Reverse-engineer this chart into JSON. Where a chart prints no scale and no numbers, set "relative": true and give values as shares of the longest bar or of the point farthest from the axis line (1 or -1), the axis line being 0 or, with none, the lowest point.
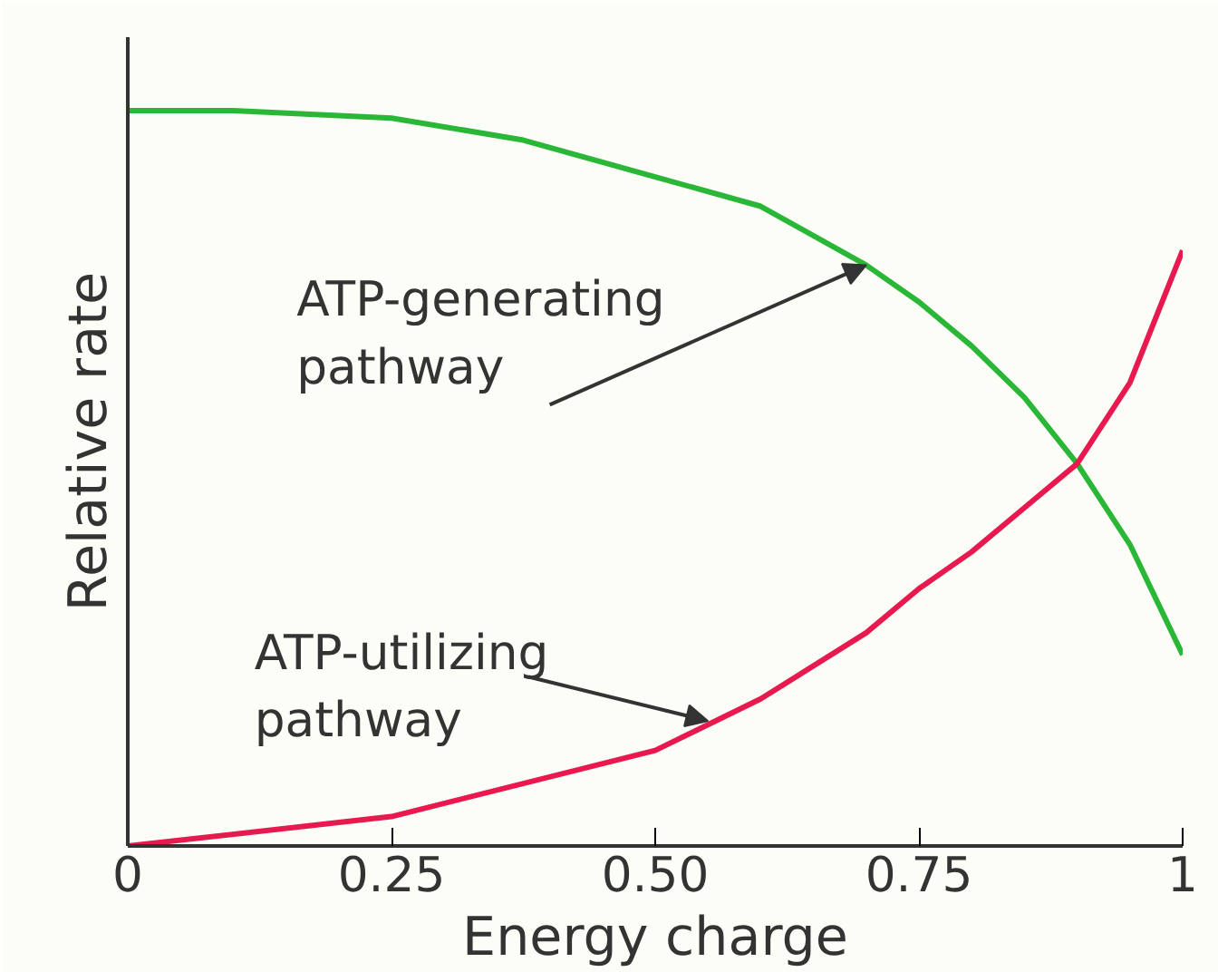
{
  "chart_data": {
    "type": "line",
    "relative": true,
    "xlabel": "Energy charge",
    "ylabel": "Relative rate",
    "xlim": [
      0,
      1
    ],
    "xticks": [
      0,
      {
        "value": 0.25,
        "label": "0.25"
      },
      {
        "value": 0.5,
        "label": "0.50"
      },
      {
        "value": 0.75,
        "label": "0.75"
      },
      1
    ],
    "grid": false,
    "tick_labels": "x",
    "series": [
      {
        "color": "#2ab636",
        "x": [
          0,
          0.1,
          0.25,
          0.375,
          0.5,
          0.6,
          0.7,
          0.75,
          0.8,
          0.85,
          0.9,
          0.95,
          1
        ],
        "values": [
          1,
          1,
          0.99,
          0.96,
          0.91,
          0.87,
          0.79,
          0.74,
          0.68,
          0.61,
          0.52,
          0.41,
          0.26
        ]
      },
      {
        "color": "#e8194f",
        "x": [
          0,
          0.25,
          0.5,
          0.6,
          0.7,
          0.75,
          0.8,
          0.85,
          0.9,
          0.95,
          1
        ],
        "values": [
          0,
          0.04,
          0.13,
          0.2,
          0.29,
          0.35,
          0.4,
          0.46,
          0.52,
          0.63,
          0.81
        ]
      }
    ],
    "annotations": [
      {
        "text": "ATP-generating\npathway",
        "x": 0.7,
        "y": 0.79
      },
      {
        "text": "ATP-utilizing\npathway",
        "x": 0.55,
        "y": 0.17
      }
    ]
  }
}
